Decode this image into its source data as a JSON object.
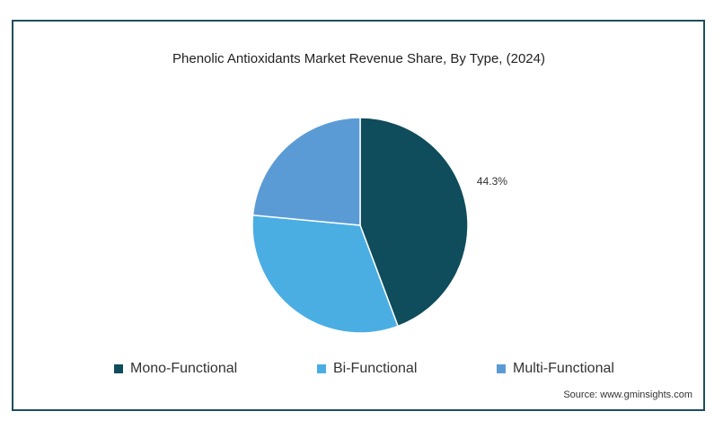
{
  "chart_data": {
    "type": "pie",
    "title": "Phenolic Antioxidants Market Revenue Share, By Type, (2024)",
    "slices": [
      {
        "label": "Mono-Functional",
        "value": 44.3,
        "color": "#0f4c5c",
        "data_label": "44.3%"
      },
      {
        "label": "Bi-Functional",
        "value": 32.2,
        "color": "#4aaee3",
        "data_label": ""
      },
      {
        "label": "Multi-Functional",
        "value": 23.5,
        "color": "#5b9bd5",
        "data_label": ""
      }
    ],
    "legend_position": "bottom"
  },
  "source": "Source: www.gminsights.com",
  "colors": {
    "frame": "#1f4e5c",
    "slice_edge": "#ffffff"
  }
}
